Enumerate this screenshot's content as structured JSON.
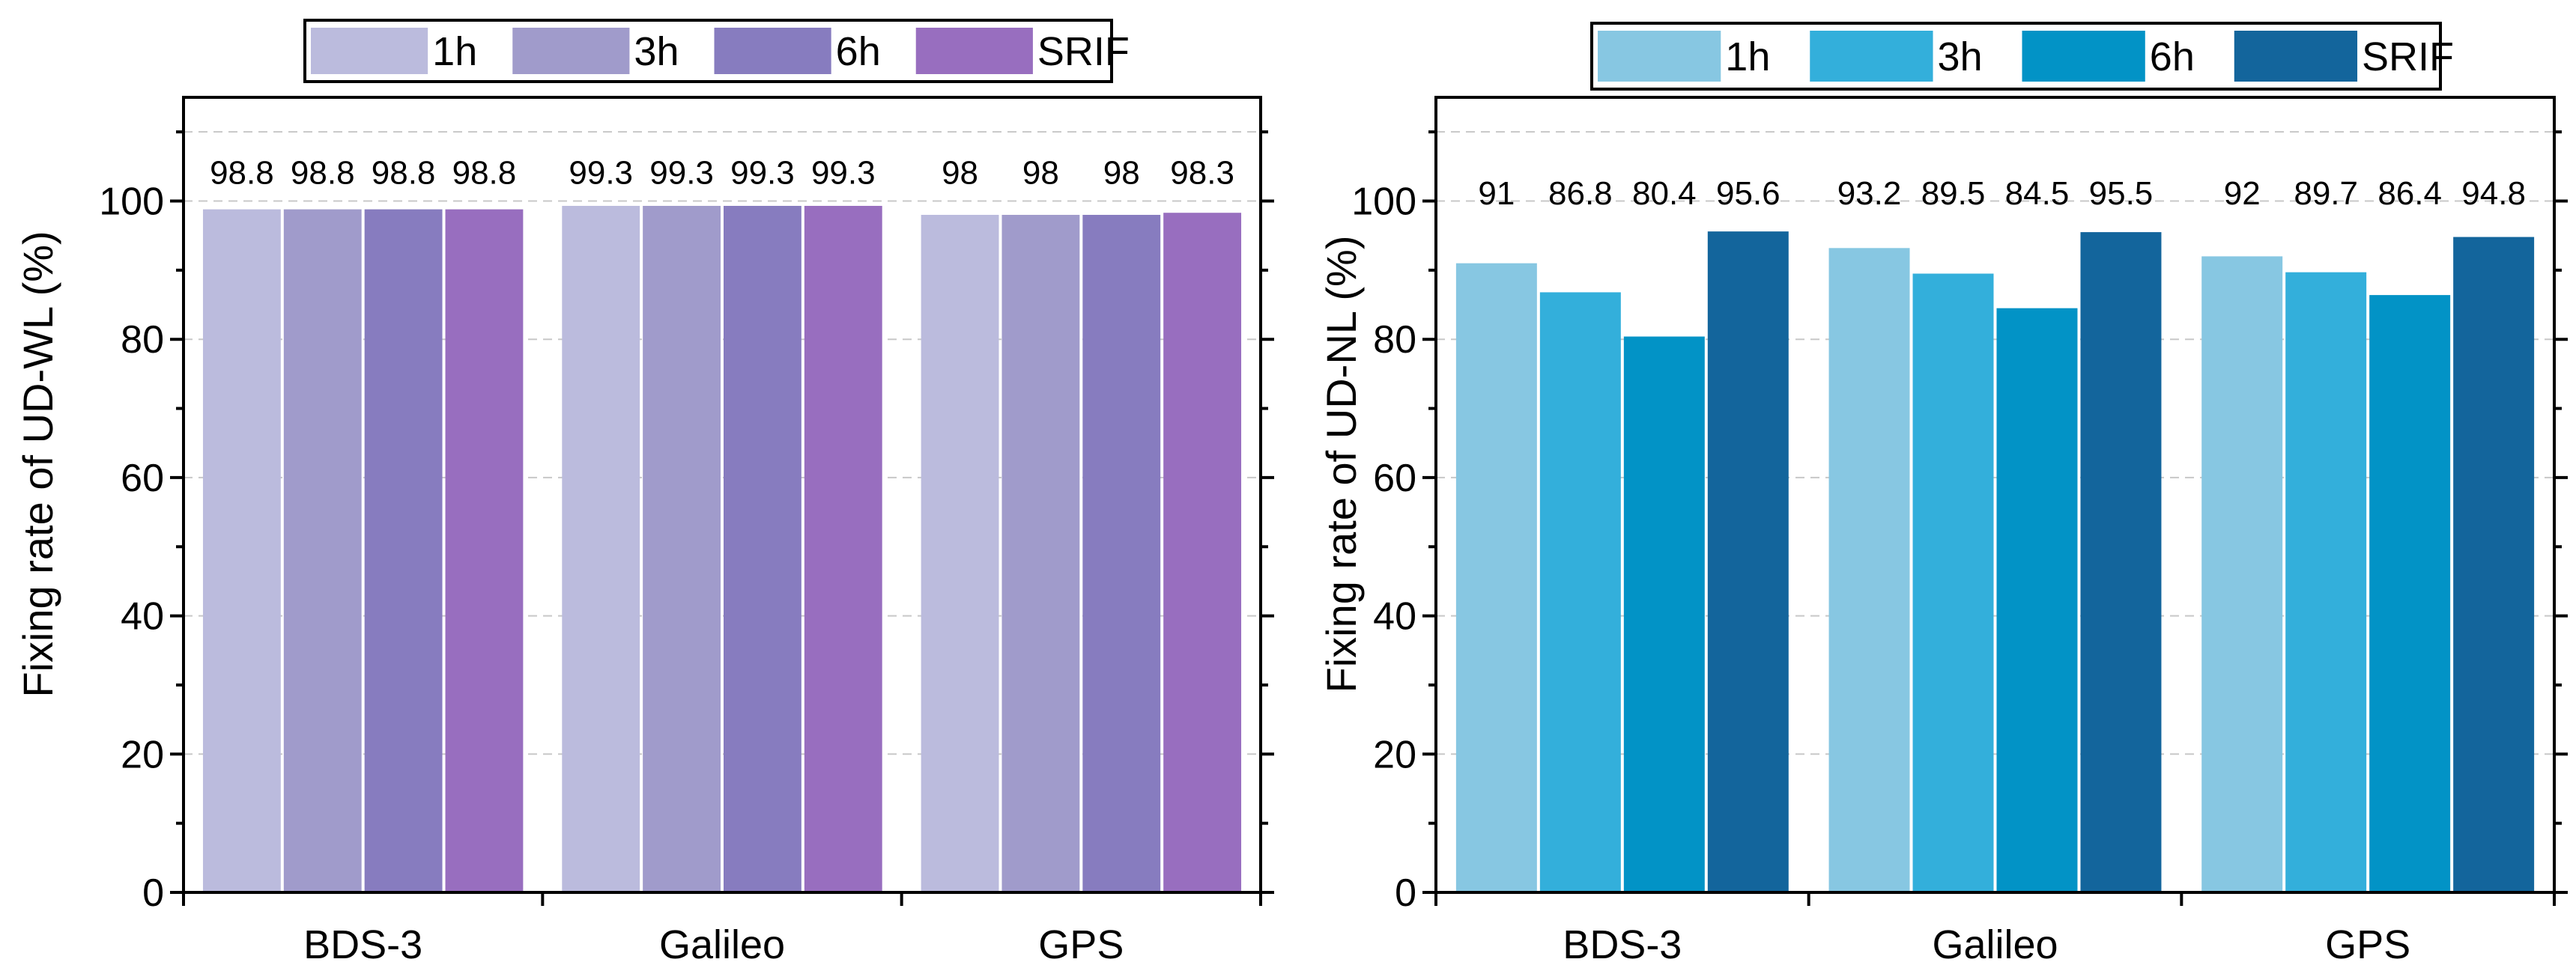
{
  "chart_data": [
    {
      "type": "bar",
      "ylabel": "Fixing rate of UD-WL (%)",
      "xlabel": "",
      "ylim": [
        0,
        115
      ],
      "yticks": [
        0,
        20,
        40,
        60,
        80,
        100
      ],
      "grid": true,
      "legend_position": "top",
      "categories": [
        "BDS-3",
        "Galileo",
        "GPS"
      ],
      "series": [
        {
          "name": "1h",
          "color": "#bbbbdd",
          "values": [
            98.8,
            99.3,
            98
          ],
          "labels": [
            "98.8",
            "99.3",
            "98"
          ]
        },
        {
          "name": "3h",
          "color": "#a09bcb",
          "values": [
            98.8,
            99.3,
            98
          ],
          "labels": [
            "98.8",
            "99.3",
            "98"
          ]
        },
        {
          "name": "6h",
          "color": "#877cbf",
          "values": [
            98.8,
            99.3,
            98
          ],
          "labels": [
            "98.8",
            "99.3",
            "98"
          ]
        },
        {
          "name": "SRIF",
          "color": "#986ebf",
          "values": [
            98.8,
            99.3,
            98.3
          ],
          "labels": [
            "98.8",
            "99.3",
            "98.3"
          ]
        }
      ]
    },
    {
      "type": "bar",
      "ylabel": "Fixing rate of UD-NL (%)",
      "xlabel": "",
      "ylim": [
        0,
        115
      ],
      "yticks": [
        0,
        20,
        40,
        60,
        80,
        100
      ],
      "grid": true,
      "legend_position": "top",
      "categories": [
        "BDS-3",
        "Galileo",
        "GPS"
      ],
      "series": [
        {
          "name": "1h",
          "color": "#87c7e2",
          "values": [
            91,
            93.2,
            92
          ],
          "labels": [
            "91",
            "93.2",
            "92"
          ]
        },
        {
          "name": "3h",
          "color": "#33afdb",
          "values": [
            86.8,
            89.5,
            89.7
          ],
          "labels": [
            "86.8",
            "89.5",
            "89.7"
          ]
        },
        {
          "name": "6h",
          "color": "#0293c6",
          "values": [
            80.4,
            84.5,
            86.4
          ],
          "labels": [
            "80.4",
            "84.5",
            "86.4"
          ]
        },
        {
          "name": "SRIF",
          "color": "#13659c",
          "values": [
            95.6,
            95.5,
            94.8
          ],
          "labels": [
            "95.6",
            "95.5",
            "94.8"
          ]
        }
      ]
    }
  ]
}
